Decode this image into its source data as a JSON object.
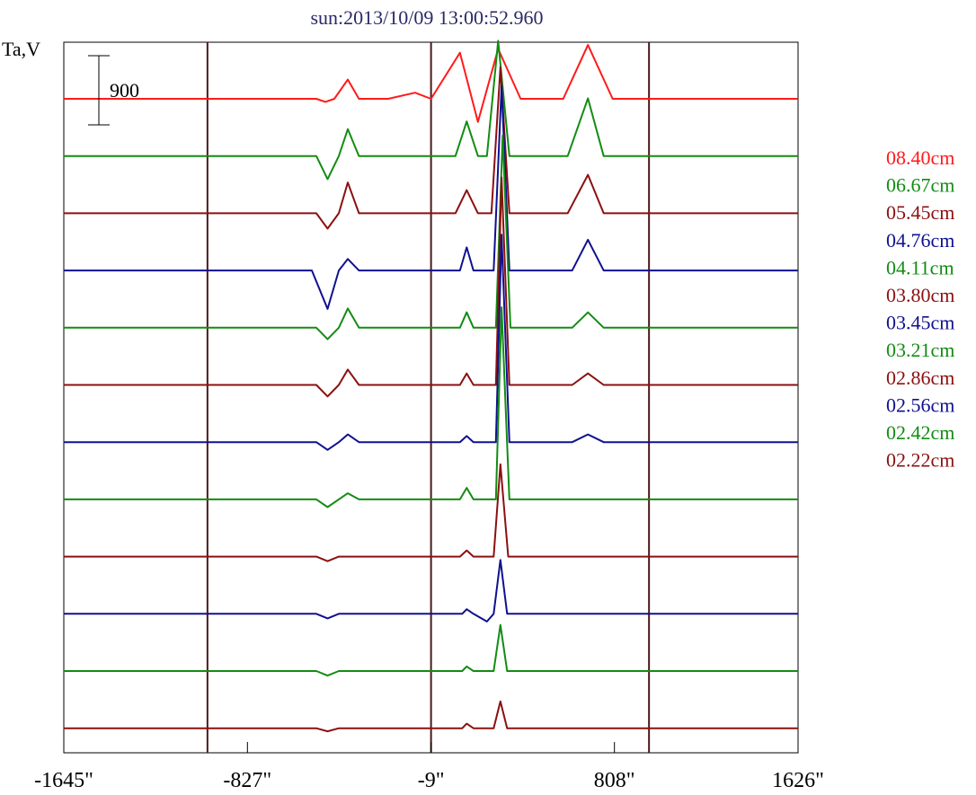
{
  "chart_data": {
    "type": "line",
    "title": "sun:2013/10/09 13:00:52.960",
    "ylabel": "Ta,V",
    "scale_bar_label": "900",
    "scale_bar_value": 900,
    "x_ticks": [
      {
        "value": -1645,
        "label": "-1645\""
      },
      {
        "value": -827,
        "label": "-827\""
      },
      {
        "value": -9,
        "label": "-9\""
      },
      {
        "value": 808,
        "label": "808\""
      },
      {
        "value": 1626,
        "label": "1626\""
      }
    ],
    "xlim": [
      -1645,
      1626
    ],
    "disk_limb_lines": [
      -1005,
      -9,
      962
    ],
    "series_colors": {
      "red": "#ff1a1a",
      "green": "#138c13",
      "darkred": "#8b1010",
      "blue": "#101090",
      "limb": "#4a1a1a"
    },
    "series": [
      {
        "name": "08.40cm",
        "color": "#ff1a1a",
        "profile": [
          [
            -1645,
            0
          ],
          [
            -1380,
            0
          ],
          [
            -1005,
            0
          ],
          [
            -520,
            0
          ],
          [
            -480,
            -40
          ],
          [
            -440,
            0
          ],
          [
            -380,
            250
          ],
          [
            -330,
            0
          ],
          [
            -200,
            0
          ],
          [
            -80,
            80
          ],
          [
            -9,
            0
          ],
          [
            120,
            600
          ],
          [
            200,
            -300
          ],
          [
            290,
            650
          ],
          [
            390,
            0
          ],
          [
            580,
            0
          ],
          [
            690,
            700
          ],
          [
            800,
            0
          ],
          [
            962,
            0
          ],
          [
            1626,
            0
          ]
        ]
      },
      {
        "name": "06.67cm",
        "color": "#138c13",
        "profile": [
          [
            -1645,
            0
          ],
          [
            -1005,
            0
          ],
          [
            -520,
            0
          ],
          [
            -470,
            -300
          ],
          [
            -420,
            0
          ],
          [
            -380,
            350
          ],
          [
            -330,
            0
          ],
          [
            -100,
            0
          ],
          [
            -9,
            0
          ],
          [
            100,
            0
          ],
          [
            150,
            450
          ],
          [
            200,
            0
          ],
          [
            240,
            0
          ],
          [
            290,
            1500
          ],
          [
            340,
            0
          ],
          [
            600,
            0
          ],
          [
            690,
            750
          ],
          [
            760,
            0
          ],
          [
            962,
            0
          ],
          [
            1626,
            0
          ]
        ]
      },
      {
        "name": "05.45cm",
        "color": "#8b1010",
        "profile": [
          [
            -1645,
            0
          ],
          [
            -1005,
            0
          ],
          [
            -520,
            0
          ],
          [
            -470,
            -200
          ],
          [
            -420,
            0
          ],
          [
            -380,
            400
          ],
          [
            -330,
            0
          ],
          [
            -9,
            0
          ],
          [
            100,
            0
          ],
          [
            150,
            300
          ],
          [
            200,
            0
          ],
          [
            260,
            0
          ],
          [
            300,
            1900
          ],
          [
            340,
            0
          ],
          [
            600,
            0
          ],
          [
            690,
            500
          ],
          [
            760,
            0
          ],
          [
            962,
            0
          ],
          [
            1626,
            0
          ]
        ]
      },
      {
        "name": "04.76cm",
        "color": "#101090",
        "profile": [
          [
            -1645,
            0
          ],
          [
            -1005,
            0
          ],
          [
            -540,
            0
          ],
          [
            -470,
            -500
          ],
          [
            -420,
            0
          ],
          [
            -380,
            150
          ],
          [
            -330,
            0
          ],
          [
            -9,
            0
          ],
          [
            120,
            0
          ],
          [
            150,
            300
          ],
          [
            180,
            0
          ],
          [
            270,
            0
          ],
          [
            305,
            2400
          ],
          [
            340,
            0
          ],
          [
            620,
            0
          ],
          [
            690,
            400
          ],
          [
            760,
            0
          ],
          [
            962,
            0
          ],
          [
            1626,
            0
          ]
        ]
      },
      {
        "name": "04.11cm",
        "color": "#138c13",
        "profile": [
          [
            -1645,
            0
          ],
          [
            -1005,
            0
          ],
          [
            -520,
            0
          ],
          [
            -470,
            -150
          ],
          [
            -420,
            0
          ],
          [
            -380,
            250
          ],
          [
            -330,
            0
          ],
          [
            -9,
            0
          ],
          [
            120,
            0
          ],
          [
            150,
            200
          ],
          [
            180,
            0
          ],
          [
            280,
            0
          ],
          [
            310,
            2500
          ],
          [
            345,
            0
          ],
          [
            620,
            0
          ],
          [
            690,
            200
          ],
          [
            760,
            0
          ],
          [
            962,
            0
          ],
          [
            1626,
            0
          ]
        ]
      },
      {
        "name": "03.80cm",
        "color": "#8b1010",
        "profile": [
          [
            -1645,
            0
          ],
          [
            -1005,
            0
          ],
          [
            -520,
            0
          ],
          [
            -470,
            -150
          ],
          [
            -420,
            0
          ],
          [
            -380,
            200
          ],
          [
            -330,
            0
          ],
          [
            -9,
            0
          ],
          [
            120,
            0
          ],
          [
            150,
            150
          ],
          [
            180,
            0
          ],
          [
            280,
            0
          ],
          [
            305,
            2700
          ],
          [
            340,
            0
          ],
          [
            620,
            0
          ],
          [
            690,
            150
          ],
          [
            760,
            0
          ],
          [
            962,
            0
          ],
          [
            1626,
            0
          ]
        ]
      },
      {
        "name": "03.45cm",
        "color": "#101090",
        "profile": [
          [
            -1645,
            0
          ],
          [
            -1005,
            0
          ],
          [
            -520,
            0
          ],
          [
            -470,
            -100
          ],
          [
            -420,
            0
          ],
          [
            -380,
            100
          ],
          [
            -330,
            0
          ],
          [
            -9,
            0
          ],
          [
            120,
            0
          ],
          [
            150,
            80
          ],
          [
            180,
            0
          ],
          [
            280,
            0
          ],
          [
            305,
            2700
          ],
          [
            340,
            0
          ],
          [
            620,
            0
          ],
          [
            690,
            100
          ],
          [
            760,
            0
          ],
          [
            962,
            0
          ],
          [
            1626,
            0
          ]
        ]
      },
      {
        "name": "03.21cm",
        "color": "#138c13",
        "profile": [
          [
            -1645,
            0
          ],
          [
            -1005,
            0
          ],
          [
            -520,
            0
          ],
          [
            -470,
            -100
          ],
          [
            -420,
            0
          ],
          [
            -380,
            80
          ],
          [
            -330,
            0
          ],
          [
            -9,
            0
          ],
          [
            120,
            0
          ],
          [
            150,
            150
          ],
          [
            180,
            0
          ],
          [
            280,
            0
          ],
          [
            305,
            2500
          ],
          [
            340,
            0
          ],
          [
            620,
            0
          ],
          [
            962,
            0
          ],
          [
            1626,
            0
          ]
        ]
      },
      {
        "name": "02.86cm",
        "color": "#8b1010",
        "profile": [
          [
            -1645,
            0
          ],
          [
            -1005,
            0
          ],
          [
            -520,
            0
          ],
          [
            -470,
            -60
          ],
          [
            -420,
            0
          ],
          [
            -9,
            0
          ],
          [
            120,
            0
          ],
          [
            150,
            80
          ],
          [
            180,
            0
          ],
          [
            270,
            0
          ],
          [
            300,
            1200
          ],
          [
            335,
            0
          ],
          [
            962,
            0
          ],
          [
            1626,
            0
          ]
        ]
      },
      {
        "name": "02.56cm",
        "color": "#101090",
        "profile": [
          [
            -1645,
            0
          ],
          [
            -1005,
            0
          ],
          [
            -520,
            0
          ],
          [
            -470,
            -60
          ],
          [
            -420,
            0
          ],
          [
            -9,
            0
          ],
          [
            130,
            0
          ],
          [
            150,
            60
          ],
          [
            180,
            0
          ],
          [
            240,
            -100
          ],
          [
            270,
            0
          ],
          [
            300,
            700
          ],
          [
            330,
            0
          ],
          [
            962,
            0
          ],
          [
            1626,
            0
          ]
        ]
      },
      {
        "name": "02.42cm",
        "color": "#138c13",
        "profile": [
          [
            -1645,
            0
          ],
          [
            -1005,
            0
          ],
          [
            -520,
            0
          ],
          [
            -470,
            -60
          ],
          [
            -420,
            0
          ],
          [
            -9,
            0
          ],
          [
            130,
            0
          ],
          [
            150,
            60
          ],
          [
            180,
            0
          ],
          [
            270,
            0
          ],
          [
            300,
            600
          ],
          [
            330,
            0
          ],
          [
            962,
            0
          ],
          [
            1626,
            0
          ]
        ]
      },
      {
        "name": "02.22cm",
        "color": "#8b1010",
        "profile": [
          [
            -1645,
            0
          ],
          [
            -1005,
            0
          ],
          [
            -520,
            0
          ],
          [
            -470,
            -40
          ],
          [
            -420,
            0
          ],
          [
            -9,
            0
          ],
          [
            130,
            0
          ],
          [
            150,
            60
          ],
          [
            180,
            0
          ],
          [
            270,
            0
          ],
          [
            300,
            350
          ],
          [
            330,
            0
          ],
          [
            962,
            0
          ],
          [
            1626,
            0
          ]
        ]
      }
    ],
    "grid": false,
    "legend_position": "right"
  }
}
